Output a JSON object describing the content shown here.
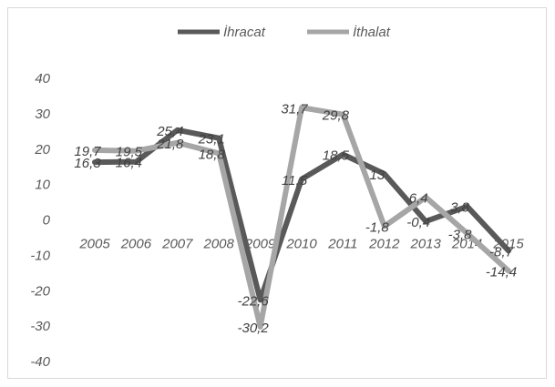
{
  "chart_data": {
    "type": "line",
    "title": "",
    "xlabel": "",
    "ylabel": "",
    "categories": [
      "2005",
      "2006",
      "2007",
      "2008",
      "2009",
      "2010",
      "2011",
      "2012",
      "2013",
      "2014",
      "2015"
    ],
    "ylim": [
      -40,
      40
    ],
    "yticks": [
      "40",
      "30",
      "20",
      "10",
      "0",
      "-10",
      "-20",
      "-30",
      "-40"
    ],
    "grid": false,
    "legend": "top-center",
    "series": [
      {
        "name": "İhracat",
        "color": "#595959",
        "values": [
          16.3,
          16.4,
          25.4,
          23.1,
          -22.6,
          11.5,
          18.5,
          13,
          -0.4,
          3.8,
          -8.7
        ],
        "labels": [
          "16,3",
          "16,4",
          "25,4",
          "23,1",
          "-22,6",
          "11,5",
          "18,5",
          "13",
          "-0,4",
          "3,8",
          "-8,7"
        ]
      },
      {
        "name": "İthalat",
        "color": "#a6a6a6",
        "values": [
          19.7,
          19.5,
          21.8,
          18.8,
          -30.2,
          31.7,
          29.8,
          -1.8,
          6.4,
          -3.8,
          -14.4
        ],
        "labels": [
          "19,7",
          "19,5",
          "21,8",
          "18,8",
          "-30,2",
          "31,7",
          "29,8",
          "-1,8",
          "6,4",
          "-3,8",
          "-14,4"
        ]
      }
    ]
  }
}
